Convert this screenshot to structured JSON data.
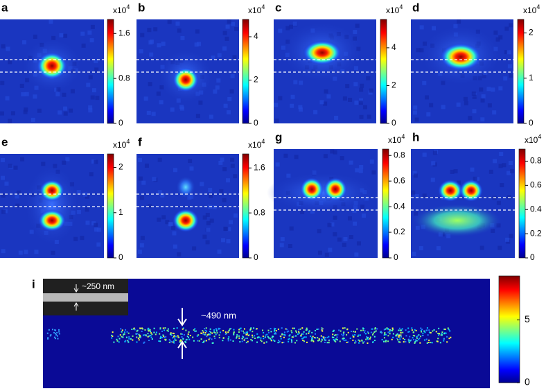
{
  "panels": [
    {
      "label": "a",
      "multiplier": "x10",
      "exponent": "4",
      "ticks": [
        0,
        0.8,
        1.6
      ],
      "lim": [
        0,
        1.85
      ]
    },
    {
      "label": "b",
      "multiplier": "x10",
      "exponent": "4",
      "ticks": [
        0,
        2,
        4
      ],
      "lim": [
        0,
        4.8
      ]
    },
    {
      "label": "c",
      "multiplier": "x10",
      "exponent": "4",
      "ticks": [
        0,
        2,
        4
      ],
      "lim": [
        0,
        5.5
      ]
    },
    {
      "label": "d",
      "multiplier": "x10",
      "exponent": "4",
      "ticks": [
        0,
        1,
        2
      ],
      "lim": [
        0,
        2.3
      ]
    },
    {
      "label": "e",
      "multiplier": "x10",
      "exponent": "4",
      "ticks": [
        0,
        1,
        2
      ],
      "lim": [
        0,
        2.3
      ]
    },
    {
      "label": "f",
      "multiplier": "x10",
      "exponent": "4",
      "ticks": [
        0,
        0.8,
        1.6
      ],
      "lim": [
        0,
        1.85
      ]
    },
    {
      "label": "g",
      "multiplier": "x10",
      "exponent": "4",
      "ticks": [
        0,
        0.2,
        0.4,
        0.6,
        0.8
      ],
      "lim": [
        0,
        0.85
      ]
    },
    {
      "label": "h",
      "multiplier": "x10",
      "exponent": "4",
      "ticks": [
        0,
        0.2,
        0.4,
        0.6,
        0.8
      ],
      "lim": [
        0,
        0.9
      ]
    }
  ],
  "panel_i": {
    "label": "i",
    "ticks": [
      0,
      5
    ],
    "lim": [
      0,
      8.5
    ],
    "inset_annotation": "~250 nm",
    "annotation": "~490 nm"
  }
}
